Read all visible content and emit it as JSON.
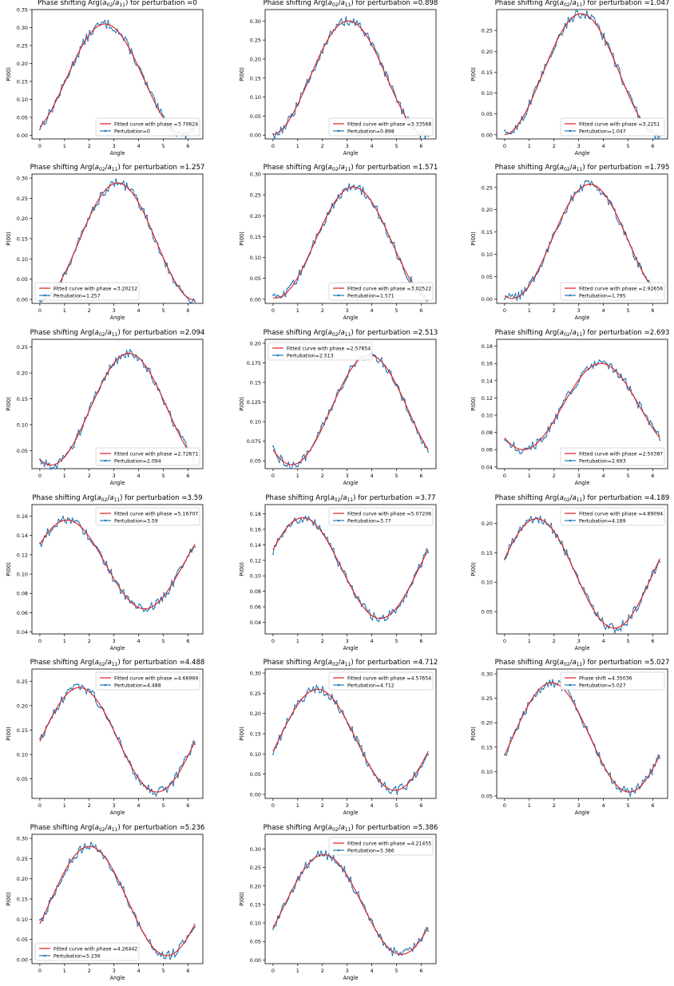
{
  "ylabel": "P(00)",
  "xlabel": "Angle",
  "colors": {
    "fit": "#e41a1c",
    "data": "#1f77b4",
    "axis": "#000000"
  },
  "chart_data": [
    {
      "type": "line",
      "title": "Phase shifting Arg(a02/a11) for perturbation =0",
      "perturbation": 0,
      "phase": 3.70624,
      "fit_label": "Fitted curve with phase =3.70624",
      "data_label": "Pertubation=0",
      "ylim": [
        -0.01,
        0.35
      ],
      "yticks": [
        0,
        0.05,
        0.1,
        0.15,
        0.2,
        0.25,
        0.3,
        0.35
      ],
      "xticks": [
        0,
        1,
        2,
        3,
        4,
        5,
        6
      ],
      "legend": "lower-right",
      "curve": {
        "amp": 0.153,
        "offset": 0.157,
        "peak_x": 2.64
      }
    },
    {
      "type": "line",
      "title": "Phase shifting Arg(a02/a11) for perturbation =0.898",
      "perturbation": 0.898,
      "phase": 3.33568,
      "fit_label": "Fitted curve with phase =3.33568",
      "data_label": "Pertubation=0.898",
      "ylim": [
        -0.01,
        0.33
      ],
      "yticks": [
        0,
        0.05,
        0.1,
        0.15,
        0.2,
        0.25,
        0.3
      ],
      "xticks": [
        0,
        1,
        2,
        3,
        4,
        5,
        6
      ],
      "legend": "lower-right",
      "curve": {
        "amp": 0.15,
        "offset": 0.15,
        "peak_x": 3.05
      }
    },
    {
      "type": "line",
      "title": "Phase shifting Arg(a02/a11) for perturbation =1.047",
      "perturbation": 1.047,
      "phase": 3.2251,
      "fit_label": "Fitted curve with phase =3.2251",
      "data_label": "Pertubation=1.047",
      "ylim": [
        -0.01,
        0.3
      ],
      "yticks": [
        0,
        0.05,
        0.1,
        0.15,
        0.2,
        0.25
      ],
      "xticks": [
        0,
        1,
        2,
        3,
        4,
        5,
        6
      ],
      "legend": "lower-right",
      "curve": {
        "amp": 0.145,
        "offset": 0.145,
        "peak_x": 3.1
      }
    },
    {
      "type": "line",
      "title": "Phase shifting Arg(a02/a11) for perturbation =1.257",
      "perturbation": 1.257,
      "phase": 3.20212,
      "fit_label": "Fitted curve with phase =3.20212",
      "data_label": "Pertubation=1.257",
      "ylim": [
        -0.01,
        0.31
      ],
      "yticks": [
        0,
        0.05,
        0.1,
        0.15,
        0.2,
        0.25,
        0.3
      ],
      "xticks": [
        0,
        1,
        2,
        3,
        4,
        5,
        6
      ],
      "legend": "lower-left",
      "curve": {
        "amp": 0.145,
        "offset": 0.143,
        "peak_x": 3.15
      }
    },
    {
      "type": "line",
      "title": "Phase shifting Arg(a02/a11) for perturbation =1.571",
      "perturbation": 1.571,
      "phase": 3.02522,
      "fit_label": "Fitted curve with phase =3.02522",
      "data_label": "Pertubation=1.571",
      "ylim": [
        -0.01,
        0.3
      ],
      "yticks": [
        0,
        0.05,
        0.1,
        0.15,
        0.2,
        0.25,
        0.3
      ],
      "xticks": [
        0,
        1,
        2,
        3,
        4,
        5,
        6
      ],
      "legend": "lower-right",
      "curve": {
        "amp": 0.133,
        "offset": 0.136,
        "peak_x": 3.25
      }
    },
    {
      "type": "line",
      "title": "Phase shifting Arg(a02/a11) for perturbation =1.795",
      "perturbation": 1.795,
      "phase": 2.92656,
      "fit_label": "Fitted curve with phase =2.92656",
      "data_label": "Pertubation=1.795",
      "ylim": [
        -0.01,
        0.28
      ],
      "yticks": [
        0,
        0.05,
        0.1,
        0.15,
        0.2,
        0.25
      ],
      "xticks": [
        0,
        1,
        2,
        3,
        4,
        5,
        6
      ],
      "legend": "lower-right",
      "curve": {
        "amp": 0.128,
        "offset": 0.129,
        "peak_x": 3.45
      }
    },
    {
      "type": "line",
      "title": "Phase shifting Arg(a02/a11) for perturbation =2.094",
      "perturbation": 2.094,
      "phase": 2.72671,
      "fit_label": "Fitted curve with phase =2.72671",
      "data_label": "Pertubation=2.094",
      "ylim": [
        0.015,
        0.265
      ],
      "yticks": [
        0.05,
        0.1,
        0.15,
        0.2,
        0.25
      ],
      "xticks": [
        0,
        1,
        2,
        3,
        4,
        5,
        6
      ],
      "legend": "lower-right",
      "curve": {
        "amp": 0.108,
        "offset": 0.13,
        "peak_x": 3.6
      }
    },
    {
      "type": "line",
      "title": "Phase shifting Arg(a02/a11) for perturbation =2.513",
      "perturbation": 2.513,
      "phase": 2.57854,
      "fit_label": "Fitted curve with phase =2.57854",
      "data_label": "Pertubation=2.513",
      "ylim": [
        0.04,
        0.205
      ],
      "yticks": [
        0.05,
        0.075,
        0.1,
        0.125,
        0.15,
        0.175,
        0.2
      ],
      "xticks": [
        0,
        1,
        2,
        3,
        4,
        5,
        6
      ],
      "legend": "upper-left",
      "curve": {
        "amp": 0.07,
        "offset": 0.115,
        "peak_x": 3.9
      }
    },
    {
      "type": "line",
      "title": "Phase shifting Arg(a02/a11) for perturbation =2.693",
      "perturbation": 2.693,
      "phase": 2.50387,
      "fit_label": "Fitted curve with phase =2.50387",
      "data_label": "Pertubation=2.693",
      "ylim": [
        0.038,
        0.188
      ],
      "yticks": [
        0.04,
        0.06,
        0.08,
        0.1,
        0.12,
        0.14,
        0.16,
        0.18
      ],
      "xticks": [
        0,
        1,
        2,
        3,
        4,
        5,
        6
      ],
      "legend": "lower-right",
      "curve": {
        "amp": 0.05,
        "offset": 0.11,
        "peak_x": 3.9
      }
    },
    {
      "type": "line",
      "title": "Phase shifting Arg(a02/a11) for perturbation =3.59",
      "perturbation": 3.59,
      "phase": 5.16707,
      "fit_label": "Fitted curve with phase =5.16707",
      "data_label": "Pertubation=3.59",
      "ylim": [
        0.038,
        0.172
      ],
      "yticks": [
        0.04,
        0.06,
        0.08,
        0.1,
        0.12,
        0.14,
        0.16
      ],
      "xticks": [
        0,
        1,
        2,
        3,
        4,
        5,
        6
      ],
      "legend": "upper-right",
      "curve": {
        "amp": 0.046,
        "offset": 0.11,
        "peak_x": 1.1
      }
    },
    {
      "type": "line",
      "title": "Phase shifting Arg(a02/a11) for perturbation =3.77",
      "perturbation": 3.77,
      "phase": 5.07206,
      "fit_label": "Fitted curve with phase =5.07206",
      "data_label": "Pertubation=3.77",
      "ylim": [
        0.025,
        0.192
      ],
      "yticks": [
        0.04,
        0.06,
        0.08,
        0.1,
        0.12,
        0.14,
        0.16,
        0.18
      ],
      "xticks": [
        0,
        1,
        2,
        3,
        4,
        5,
        6
      ],
      "legend": "upper-right",
      "curve": {
        "amp": 0.065,
        "offset": 0.11,
        "peak_x": 1.2
      }
    },
    {
      "type": "line",
      "title": "Phase shifting Arg(a02/a11) for perturbation =4.189",
      "perturbation": 4.189,
      "phase": 4.89094,
      "fit_label": "Fitted curve with phase =4.89094",
      "data_label": "Pertubation=4.189",
      "ylim": [
        0.012,
        0.232
      ],
      "yticks": [
        0.05,
        0.1,
        0.15,
        0.2
      ],
      "xticks": [
        0,
        1,
        2,
        3,
        4,
        5,
        6
      ],
      "legend": "upper-right",
      "curve": {
        "amp": 0.093,
        "offset": 0.115,
        "peak_x": 1.3
      }
    },
    {
      "type": "line",
      "title": "Phase shifting Arg(a02/a11) for perturbation =4.488",
      "perturbation": 4.488,
      "phase": 4.66969,
      "fit_label": "Fitted curve with phase =4.66969",
      "data_label": "Pertubation=4.488",
      "ylim": [
        0.01,
        0.275
      ],
      "yticks": [
        0.05,
        0.1,
        0.15,
        0.2,
        0.25
      ],
      "xticks": [
        0,
        1,
        2,
        3,
        4,
        5,
        6
      ],
      "legend": "upper-right",
      "curve": {
        "amp": 0.107,
        "offset": 0.13,
        "peak_x": 1.6
      }
    },
    {
      "type": "line",
      "title": "Phase shifting Arg(a02/a11) for perturbation =4.712",
      "perturbation": 4.712,
      "phase": 4.57654,
      "fit_label": "Fitted curve with phase =4.57654",
      "data_label": "Pertubation=4.712",
      "ylim": [
        -0.01,
        0.31
      ],
      "yticks": [
        0,
        0.05,
        0.1,
        0.15,
        0.2,
        0.25,
        0.3
      ],
      "xticks": [
        0,
        1,
        2,
        3,
        4,
        5,
        6
      ],
      "legend": "upper-right",
      "curve": {
        "amp": 0.125,
        "offset": 0.135,
        "peak_x": 1.8
      }
    },
    {
      "type": "line",
      "title": "Phase shifting Arg(a02/a11) for perturbation =5.027",
      "perturbation": 5.027,
      "phase": 4.35036,
      "fit_label": "Phase shift =4.35036",
      "data_label": "Pertubation=5.027",
      "ylim": [
        0.045,
        0.31
      ],
      "yticks": [
        0.05,
        0.1,
        0.15,
        0.2,
        0.25,
        0.3
      ],
      "xticks": [
        0,
        1,
        2,
        3,
        4,
        5,
        6
      ],
      "legend": "upper-right",
      "curve": {
        "amp": 0.112,
        "offset": 0.17,
        "peak_x": 1.9
      }
    },
    {
      "type": "line",
      "title": "Phase shifting Arg(a02/a11) for perturbation =5.236",
      "perturbation": 5.236,
      "phase": 4.26442,
      "fit_label": "Fitted curve with phase =4.26442",
      "data_label": "Pertubation=5.236",
      "ylim": [
        -0.01,
        0.31
      ],
      "yticks": [
        0,
        0.05,
        0.1,
        0.15,
        0.2,
        0.25,
        0.3
      ],
      "xticks": [
        0,
        1,
        2,
        3,
        4,
        5,
        6
      ],
      "legend": "lower-left",
      "curve": {
        "amp": 0.135,
        "offset": 0.145,
        "peak_x": 2.0
      }
    },
    {
      "type": "line",
      "title": "Phase shifting Arg(a02/a11) for perturbation =5.386",
      "perturbation": 5.386,
      "phase": 4.21455,
      "fit_label": "Fitted curve with phase =4.21455",
      "data_label": "Pertubation=5.386",
      "ylim": [
        -0.01,
        0.34
      ],
      "yticks": [
        0,
        0.05,
        0.1,
        0.15,
        0.2,
        0.25,
        0.3
      ],
      "xticks": [
        0,
        1,
        2,
        3,
        4,
        5,
        6
      ],
      "legend": "upper-right",
      "curve": {
        "amp": 0.135,
        "offset": 0.15,
        "peak_x": 2.05
      }
    }
  ]
}
